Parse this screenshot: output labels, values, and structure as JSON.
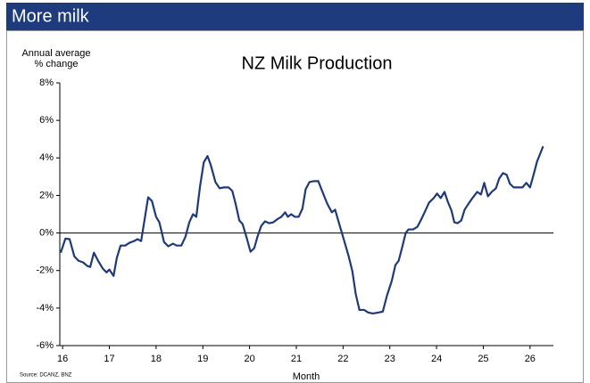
{
  "header": "More milk",
  "chart_data": {
    "type": "line",
    "title": "NZ Milk Production",
    "ylabel": "Annual average\n% change",
    "xlabel": "Month",
    "source": "Source: DCANZ, BNZ",
    "xlim": [
      15.94,
      26.5
    ],
    "xticks": [
      16,
      17,
      18,
      19,
      20,
      21,
      22,
      23,
      24,
      25,
      26
    ],
    "ylim": [
      -6,
      8
    ],
    "yticks": [
      {
        "value": -6,
        "label": "-6%"
      },
      {
        "value": -4,
        "label": "-4%"
      },
      {
        "value": -2,
        "label": "-2%"
      },
      {
        "value": 0,
        "label": "0%"
      },
      {
        "value": 2,
        "label": "2%"
      },
      {
        "value": 4,
        "label": "4%"
      },
      {
        "value": 6,
        "label": "6%"
      },
      {
        "value": 8,
        "label": "8%"
      }
    ],
    "series": [
      {
        "name": "NZ Milk Production",
        "color": "#1f3a7a",
        "x": [
          15.96,
          16.06,
          16.15,
          16.25,
          16.34,
          16.44,
          16.53,
          16.59,
          16.67,
          16.76,
          16.86,
          16.94,
          17.0,
          17.09,
          17.16,
          17.24,
          17.34,
          17.43,
          17.53,
          17.6,
          17.68,
          17.76,
          17.83,
          17.91,
          18.0,
          18.07,
          18.17,
          18.26,
          18.36,
          18.44,
          18.54,
          18.63,
          18.71,
          18.79,
          18.86,
          18.94,
          19.02,
          19.1,
          19.17,
          19.27,
          19.36,
          19.45,
          19.55,
          19.63,
          19.7,
          19.78,
          19.85,
          19.93,
          20.02,
          20.1,
          20.17,
          20.25,
          20.33,
          20.42,
          20.51,
          20.61,
          20.68,
          20.76,
          20.82,
          20.89,
          20.97,
          21.05,
          21.13,
          21.2,
          21.28,
          21.37,
          21.47,
          21.56,
          21.66,
          21.76,
          21.83,
          21.93,
          22.02,
          22.12,
          22.2,
          22.27,
          22.35,
          22.45,
          22.54,
          22.64,
          22.75,
          22.85,
          22.94,
          23.04,
          23.12,
          23.19,
          23.27,
          23.34,
          23.4,
          23.5,
          23.59,
          23.67,
          23.77,
          23.84,
          23.94,
          24.01,
          24.09,
          24.17,
          24.24,
          24.32,
          24.38,
          24.45,
          24.53,
          24.6,
          24.7,
          24.78,
          24.87,
          24.95,
          25.02,
          25.1,
          25.18,
          25.27,
          25.34,
          25.42,
          25.5,
          25.57,
          25.65,
          25.74,
          25.84,
          25.92,
          26.0,
          26.08,
          26.15,
          26.22,
          26.28
        ],
        "values": [
          -1.05,
          -0.3,
          -0.33,
          -1.24,
          -1.48,
          -1.57,
          -1.76,
          -1.81,
          -1.05,
          -1.48,
          -1.9,
          -2.1,
          -1.95,
          -2.29,
          -1.33,
          -0.67,
          -0.67,
          -0.52,
          -0.43,
          -0.33,
          -0.43,
          0.81,
          1.9,
          1.71,
          0.86,
          0.57,
          -0.48,
          -0.71,
          -0.57,
          -0.67,
          -0.67,
          -0.19,
          0.57,
          1.0,
          0.86,
          2.48,
          3.76,
          4.1,
          3.62,
          2.71,
          2.38,
          2.43,
          2.43,
          2.24,
          1.57,
          0.67,
          0.48,
          -0.19,
          -1.0,
          -0.81,
          -0.19,
          0.38,
          0.62,
          0.52,
          0.57,
          0.76,
          0.86,
          1.1,
          0.86,
          1.0,
          0.86,
          0.86,
          1.29,
          2.33,
          2.71,
          2.76,
          2.76,
          2.19,
          1.57,
          1.1,
          1.24,
          0.38,
          -0.38,
          -1.24,
          -2.05,
          -3.24,
          -4.1,
          -4.1,
          -4.24,
          -4.29,
          -4.24,
          -4.19,
          -3.33,
          -2.57,
          -1.71,
          -1.48,
          -0.71,
          0.0,
          0.19,
          0.19,
          0.33,
          0.71,
          1.24,
          1.62,
          1.86,
          2.1,
          1.86,
          2.19,
          1.67,
          1.19,
          0.57,
          0.52,
          0.67,
          1.24,
          1.62,
          1.9,
          2.19,
          2.05,
          2.67,
          1.95,
          2.19,
          2.38,
          2.9,
          3.19,
          3.1,
          2.62,
          2.43,
          2.43,
          2.43,
          2.67,
          2.43,
          3.14,
          3.81,
          4.24,
          4.62
        ]
      }
    ]
  }
}
